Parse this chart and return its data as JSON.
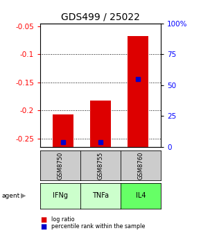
{
  "title": "GDS499 / 25022",
  "samples": [
    "GSM8750",
    "GSM8755",
    "GSM8760"
  ],
  "agents": [
    "IFNg",
    "TNFa",
    "IL4"
  ],
  "log_ratios": [
    -0.207,
    -0.183,
    -0.068
  ],
  "percentile_ranks": [
    3.5,
    3.5,
    55.0
  ],
  "ylim_left": [
    -0.265,
    -0.045
  ],
  "left_ticks": [
    -0.05,
    -0.1,
    -0.15,
    -0.2,
    -0.25
  ],
  "right_ticks": [
    100,
    75,
    50,
    25,
    0
  ],
  "bar_color": "#dd0000",
  "dot_color": "#0000cc",
  "sample_bg": "#cccccc",
  "agent_bg_colors": [
    "#ccffcc",
    "#ccffcc",
    "#66ff66"
  ],
  "title_fontsize": 10,
  "tick_fontsize": 7.5,
  "label_fontsize": 7
}
